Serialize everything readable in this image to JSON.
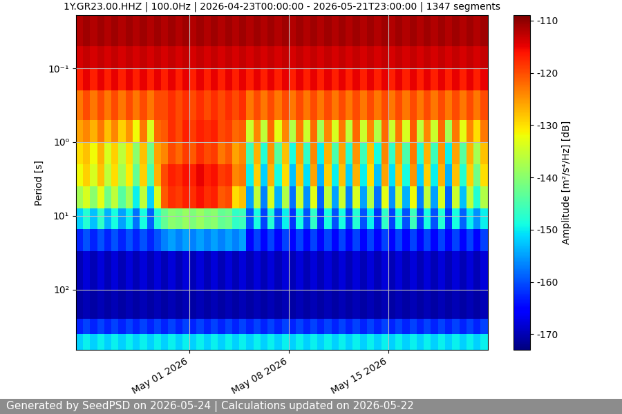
{
  "chart_data": {
    "type": "heatmap",
    "title": "1Y.GR23.00.HHZ | 100.0Hz | 2026-04-23T00:00:00 - 2026-05-21T23:00:00 | 1347 segments",
    "y_label": "Period [s]",
    "colorbar_label": "Amplitude [m²/s⁴/Hz] [dB]",
    "footer": "Generated by SeedPSD on 2026-05-24 | Calculations updated on 2026-05-22",
    "color": "jet",
    "log": "y",
    "grid": true,
    "xlim": [
      "2026-04-23T00:00",
      "2026-05-22T00:00"
    ],
    "xticks": [
      {
        "value": "2026-05-01",
        "label": "May 01 2026"
      },
      {
        "value": "2026-05-08",
        "label": "May 08 2026"
      },
      {
        "value": "2026-05-15",
        "label": "May 15 2026"
      }
    ],
    "ylim": [
      660,
      0.019
    ],
    "yticks": [
      {
        "value": 0.1,
        "label": "10⁻¹"
      },
      {
        "value": 1,
        "label": "10⁰"
      },
      {
        "value": 10,
        "label": "10¹"
      },
      {
        "value": 100,
        "label": "10²"
      }
    ],
    "clim": [
      -173,
      -109
    ],
    "cticks": [
      -170,
      -160,
      -150,
      -140,
      -130,
      -120,
      -110
    ],
    "x_edges": [
      "2026-04-23T00:00",
      "2026-04-23T12:00",
      "2026-04-24T00:00",
      "2026-04-24T12:00",
      "2026-04-25T00:00",
      "2026-04-25T12:00",
      "2026-04-26T00:00",
      "2026-04-26T12:00",
      "2026-04-27T00:00",
      "2026-04-27T12:00",
      "2026-04-28T00:00",
      "2026-04-28T12:00",
      "2026-04-29T00:00",
      "2026-04-29T12:00",
      "2026-04-30T00:00",
      "2026-04-30T12:00",
      "2026-05-01T00:00",
      "2026-05-01T12:00",
      "2026-05-02T00:00",
      "2026-05-02T12:00",
      "2026-05-03T00:00",
      "2026-05-03T12:00",
      "2026-05-04T00:00",
      "2026-05-04T12:00",
      "2026-05-05T00:00",
      "2026-05-05T12:00",
      "2026-05-06T00:00",
      "2026-05-06T12:00",
      "2026-05-07T00:00",
      "2026-05-07T12:00",
      "2026-05-08T00:00",
      "2026-05-08T12:00",
      "2026-05-09T00:00",
      "2026-05-09T12:00",
      "2026-05-10T00:00",
      "2026-05-10T12:00",
      "2026-05-11T00:00",
      "2026-05-11T12:00",
      "2026-05-12T00:00",
      "2026-05-12T12:00",
      "2026-05-13T00:00",
      "2026-05-13T12:00",
      "2026-05-14T00:00",
      "2026-05-14T12:00",
      "2026-05-15T00:00",
      "2026-05-15T12:00",
      "2026-05-16T00:00",
      "2026-05-16T12:00",
      "2026-05-17T00:00",
      "2026-05-17T12:00",
      "2026-05-18T00:00",
      "2026-05-18T12:00",
      "2026-05-19T00:00",
      "2026-05-19T12:00",
      "2026-05-20T00:00",
      "2026-05-20T12:00",
      "2026-05-21T00:00",
      "2026-05-21T12:00",
      "2026-05-22T00:00"
    ],
    "y_edges": [
      0.019,
      0.05,
      0.1,
      0.2,
      0.5,
      1,
      2,
      4,
      8,
      15,
      30,
      100,
      250,
      400,
      660
    ],
    "cells": [
      [
        -112,
        -111,
        -112,
        -111,
        -112,
        -111,
        -112,
        -111,
        -112,
        -111,
        -112,
        -111,
        -112,
        -111,
        -112,
        -111,
        -112,
        -111,
        -112,
        -111,
        -112,
        -111,
        -112,
        -111,
        -112,
        -111,
        -112,
        -111,
        -112,
        -111,
        -112,
        -111,
        -112,
        -111,
        -112,
        -111,
        -112,
        -111,
        -112,
        -111,
        -112,
        -111,
        -112,
        -111,
        -112,
        -111,
        -112,
        -111,
        -112,
        -111,
        -112,
        -111,
        -112,
        -111,
        -112,
        -111,
        -112,
        -111
      ],
      [
        -114,
        -113,
        -114,
        -113,
        -114,
        -113,
        -114,
        -113,
        -114,
        -113,
        -114,
        -113,
        -114,
        -113,
        -114,
        -113,
        -114,
        -113,
        -114,
        -113,
        -114,
        -113,
        -114,
        -113,
        -114,
        -113,
        -114,
        -113,
        -114,
        -113,
        -114,
        -113,
        -114,
        -113,
        -114,
        -113,
        -114,
        -113,
        -114,
        -113,
        -114,
        -113,
        -114,
        -113,
        -114,
        -113,
        -114,
        -113,
        -114,
        -113,
        -114,
        -113,
        -114,
        -113,
        -114,
        -113,
        -114,
        -113
      ],
      [
        -117,
        -115,
        -117,
        -115,
        -117,
        -115,
        -117,
        -115,
        -117,
        -115,
        -117,
        -115,
        -117,
        -115,
        -117,
        -115,
        -117,
        -115,
        -117,
        -115,
        -117,
        -115,
        -117,
        -115,
        -117,
        -115,
        -117,
        -115,
        -117,
        -115,
        -117,
        -115,
        -117,
        -115,
        -117,
        -115,
        -117,
        -115,
        -117,
        -115,
        -117,
        -115,
        -117,
        -115,
        -117,
        -115,
        -117,
        -115,
        -117,
        -115,
        -117,
        -115,
        -117,
        -115,
        -117,
        -115,
        -117,
        -115
      ],
      [
        -123,
        -120,
        -123,
        -120,
        -123,
        -120,
        -123,
        -120,
        -123,
        -120,
        -123,
        -120,
        -120,
        -118,
        -120,
        -118,
        -120,
        -118,
        -120,
        -118,
        -120,
        -118,
        -120,
        -118,
        -123,
        -120,
        -123,
        -120,
        -123,
        -120,
        -123,
        -120,
        -123,
        -120,
        -123,
        -120,
        -123,
        -120,
        -123,
        -120,
        -123,
        -120,
        -123,
        -120,
        -123,
        -120,
        -123,
        -120,
        -123,
        -120,
        -123,
        -120,
        -123,
        -120,
        -123,
        -120,
        -123,
        -120
      ],
      [
        -126,
        -124,
        -127,
        -123,
        -128,
        -124,
        -129,
        -125,
        -132,
        -123,
        -134,
        -122,
        -121,
        -118,
        -120,
        -117,
        -119,
        -117,
        -118,
        -117,
        -120,
        -119,
        -122,
        -121,
        -135,
        -124,
        -136,
        -122,
        -133,
        -124,
        -137,
        -123,
        -135,
        -122,
        -138,
        -124,
        -134,
        -123,
        -136,
        -122,
        -135,
        -124,
        -137,
        -122,
        -135,
        -123,
        -134,
        -121,
        -136,
        -124,
        -135,
        -122,
        -138,
        -123,
        -133,
        -124,
        -130,
        -123
      ],
      [
        -130,
        -128,
        -132,
        -127,
        -134,
        -129,
        -136,
        -130,
        -140,
        -128,
        -142,
        -126,
        -124,
        -120,
        -122,
        -119,
        -121,
        -118,
        -120,
        -119,
        -123,
        -121,
        -126,
        -124,
        -146,
        -127,
        -148,
        -125,
        -144,
        -128,
        -149,
        -126,
        -147,
        -124,
        -150,
        -127,
        -145,
        -126,
        -148,
        -125,
        -146,
        -128,
        -149,
        -124,
        -147,
        -126,
        -145,
        -123,
        -148,
        -127,
        -146,
        -125,
        -150,
        -126,
        -144,
        -127,
        -138,
        -128
      ],
      [
        -132,
        -129,
        -134,
        -128,
        -136,
        -130,
        -138,
        -131,
        -143,
        -129,
        -145,
        -127,
        -120,
        -117,
        -118,
        -116,
        -117,
        -115,
        -117,
        -116,
        -119,
        -118,
        -124,
        -123,
        -150,
        -129,
        -152,
        -127,
        -149,
        -130,
        -153,
        -128,
        -151,
        -126,
        -154,
        -129,
        -150,
        -128,
        -152,
        -127,
        -150,
        -130,
        -153,
        -126,
        -151,
        -128,
        -149,
        -125,
        -152,
        -129,
        -150,
        -127,
        -154,
        -128,
        -148,
        -129,
        -142,
        -130
      ],
      [
        -138,
        -134,
        -140,
        -133,
        -142,
        -136,
        -144,
        -138,
        -150,
        -136,
        -152,
        -134,
        -121,
        -118,
        -119,
        -117,
        -118,
        -116,
        -118,
        -117,
        -121,
        -120,
        -130,
        -128,
        -155,
        -136,
        -157,
        -134,
        -154,
        -137,
        -158,
        -135,
        -156,
        -133,
        -159,
        -136,
        -155,
        -135,
        -157,
        -134,
        -155,
        -137,
        -158,
        -133,
        -156,
        -135,
        -154,
        -132,
        -157,
        -136,
        -155,
        -134,
        -159,
        -135,
        -153,
        -136,
        -148,
        -137
      ],
      [
        -152,
        -148,
        -153,
        -147,
        -154,
        -149,
        -155,
        -150,
        -158,
        -149,
        -159,
        -148,
        -143,
        -140,
        -141,
        -139,
        -141,
        -139,
        -141,
        -140,
        -143,
        -142,
        -147,
        -146,
        -160,
        -149,
        -161,
        -148,
        -160,
        -150,
        -162,
        -149,
        -160,
        -147,
        -162,
        -149,
        -160,
        -149,
        -161,
        -148,
        -160,
        -150,
        -162,
        -147,
        -161,
        -149,
        -160,
        -146,
        -161,
        -149,
        -160,
        -148,
        -162,
        -149,
        -159,
        -150,
        -156,
        -150
      ],
      [
        -163,
        -160,
        -163,
        -160,
        -163,
        -160,
        -163,
        -160,
        -163,
        -160,
        -163,
        -160,
        -157,
        -155,
        -157,
        -155,
        -157,
        -155,
        -157,
        -155,
        -157,
        -155,
        -157,
        -155,
        -165,
        -161,
        -165,
        -161,
        -165,
        -161,
        -165,
        -161,
        -165,
        -161,
        -165,
        -161,
        -165,
        -161,
        -165,
        -161,
        -165,
        -161,
        -165,
        -161,
        -165,
        -161,
        -165,
        -161,
        -165,
        -161,
        -165,
        -161,
        -165,
        -161,
        -165,
        -161,
        -165,
        -161
      ],
      [
        -170,
        -168,
        -170,
        -168,
        -170,
        -168,
        -170,
        -168,
        -170,
        -168,
        -170,
        -168,
        -170,
        -168,
        -170,
        -168,
        -170,
        -168,
        -170,
        -168,
        -170,
        -168,
        -170,
        -168,
        -170,
        -168,
        -170,
        -168,
        -170,
        -168,
        -170,
        -168,
        -170,
        -168,
        -170,
        -168,
        -170,
        -168,
        -170,
        -168,
        -170,
        -168,
        -170,
        -168,
        -170,
        -168,
        -170,
        -168,
        -170,
        -168,
        -170,
        -168,
        -170,
        -168,
        -170,
        -168,
        -170,
        -168
      ],
      [
        -171,
        -170,
        -171,
        -170,
        -171,
        -170,
        -171,
        -170,
        -171,
        -170,
        -171,
        -170,
        -171,
        -170,
        -171,
        -170,
        -171,
        -170,
        -171,
        -170,
        -171,
        -170,
        -171,
        -170,
        -171,
        -170,
        -171,
        -170,
        -171,
        -170,
        -171,
        -170,
        -171,
        -170,
        -171,
        -170,
        -171,
        -170,
        -171,
        -170,
        -171,
        -170,
        -171,
        -170,
        -171,
        -170,
        -171,
        -170,
        -171,
        -170,
        -171,
        -170,
        -171,
        -170,
        -171,
        -170,
        -171,
        -170
      ],
      [
        -163,
        -161,
        -163,
        -161,
        -163,
        -161,
        -163,
        -161,
        -163,
        -161,
        -163,
        -161,
        -163,
        -161,
        -163,
        -161,
        -163,
        -161,
        -163,
        -161,
        -163,
        -161,
        -163,
        -161,
        -163,
        -161,
        -163,
        -161,
        -163,
        -161,
        -163,
        -161,
        -163,
        -161,
        -163,
        -161,
        -163,
        -161,
        -163,
        -161,
        -163,
        -161,
        -163,
        -161,
        -163,
        -161,
        -163,
        -161,
        -163,
        -161,
        -163,
        -161,
        -163,
        -161,
        -163,
        -161,
        -163,
        -161
      ],
      [
        -152,
        -150,
        -152,
        -150,
        -152,
        -150,
        -152,
        -150,
        -152,
        -150,
        -152,
        -150,
        -152,
        -150,
        -152,
        -150,
        -152,
        -150,
        -152,
        -150,
        -152,
        -150,
        -152,
        -150,
        -152,
        -150,
        -152,
        -150,
        -152,
        -150,
        -152,
        -150,
        -152,
        -150,
        -152,
        -150,
        -152,
        -150,
        -152,
        -150,
        -152,
        -150,
        -152,
        -150,
        -152,
        -150,
        -152,
        -150,
        -152,
        -150,
        -152,
        -150,
        -152,
        -150,
        -152,
        -150,
        -152,
        -150
      ]
    ]
  }
}
